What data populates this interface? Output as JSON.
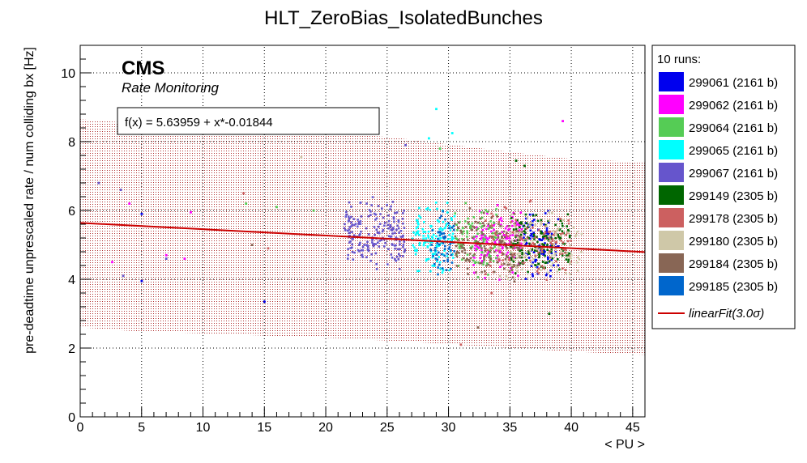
{
  "chart_data": {
    "type": "scatter",
    "title": "HLT_ZeroBias_IsolatedBunches",
    "xlabel": "< PU >",
    "ylabel": "pre-deadtime unprescaled rate / num colliding bx [Hz]",
    "xlim": [
      0,
      46
    ],
    "ylim": [
      0,
      10.8
    ],
    "x_ticks": [
      0,
      5,
      10,
      15,
      20,
      25,
      30,
      35,
      40,
      45
    ],
    "x_tick_labels": [
      "0",
      "5",
      "10",
      "15",
      "20",
      "25",
      "30",
      "35",
      "40",
      "45"
    ],
    "y_ticks": [
      0,
      2,
      4,
      6,
      8,
      10
    ],
    "y_tick_labels": [
      "0",
      "2",
      "4",
      "6",
      "8",
      "10"
    ],
    "grid": true,
    "cms_label": "CMS",
    "cms_sublabel": "Rate Monitoring",
    "fit_label": "f(x) = 5.63959 + x*-0.01844",
    "fit": {
      "intercept": 5.63959,
      "slope": -0.01844,
      "color": "#cc0000"
    },
    "band": {
      "color": "#b03030",
      "upper": [
        [
          0,
          8.65
        ],
        [
          4,
          8.55
        ],
        [
          20,
          8.3
        ],
        [
          26,
          8.1
        ],
        [
          35,
          7.7
        ],
        [
          40,
          7.5
        ],
        [
          46,
          7.4
        ]
      ],
      "lower": [
        [
          0,
          2.6
        ],
        [
          4,
          2.5
        ],
        [
          20,
          2.3
        ],
        [
          26,
          2.2
        ],
        [
          35,
          2.0
        ],
        [
          40,
          1.9
        ],
        [
          46,
          1.8
        ]
      ]
    },
    "legend": {
      "position": "right",
      "header": "10 runs:",
      "fit_entry_label": "linearFit",
      "fit_entry_suffix": "(3.0σ)"
    },
    "series": [
      {
        "name": "299061 (2161 b)",
        "color": "#0000ee",
        "pu_range": [
          36,
          39
        ],
        "rate_center": 5.0,
        "rate_spread": 0.8,
        "n": 100,
        "outliers": [
          [
            5.0,
            5.9
          ],
          [
            5.0,
            3.95
          ],
          [
            15.0,
            3.35
          ]
        ]
      },
      {
        "name": "299062 (2161 b)",
        "color": "#ff00ff",
        "pu_range": [
          32,
          36
        ],
        "rate_center": 5.1,
        "rate_spread": 0.8,
        "n": 130,
        "outliers": [
          [
            39.3,
            8.6
          ],
          [
            4.0,
            6.2
          ],
          [
            9.0,
            5.95
          ],
          [
            8.5,
            4.6
          ],
          [
            7.0,
            4.7
          ],
          [
            2.6,
            4.5
          ]
        ]
      },
      {
        "name": "299064 (2161 b)",
        "color": "#55cc55",
        "pu_range": [
          30.5,
          34
        ],
        "rate_center": 5.2,
        "rate_spread": 0.8,
        "n": 100,
        "outliers": [
          [
            13.5,
            6.2
          ],
          [
            16.0,
            6.1
          ],
          [
            19.0,
            6.0
          ],
          [
            29.3,
            7.8
          ]
        ]
      },
      {
        "name": "299065 (2161 b)",
        "color": "#00ffff",
        "pu_range": [
          27,
          30.5
        ],
        "rate_center": 5.2,
        "rate_spread": 0.8,
        "n": 130,
        "outliers": [
          [
            29.0,
            8.95
          ],
          [
            30.3,
            8.25
          ],
          [
            28.4,
            8.1
          ]
        ]
      },
      {
        "name": "299067 (2161 b)",
        "color": "#6655cc",
        "pu_range": [
          21.5,
          26.5
        ],
        "rate_center": 5.25,
        "rate_spread": 0.8,
        "n": 200,
        "outliers": [
          [
            1.5,
            6.8
          ],
          [
            3.3,
            6.6
          ],
          [
            7.0,
            4.6
          ],
          [
            3.5,
            4.1
          ],
          [
            26.5,
            7.9
          ]
        ]
      },
      {
        "name": "299149 (2305 b)",
        "color": "#006600",
        "pu_range": [
          35,
          40
        ],
        "rate_center": 5.0,
        "rate_spread": 0.8,
        "n": 150,
        "outliers": [
          [
            35.5,
            7.45
          ],
          [
            36.2,
            7.3
          ],
          [
            38.2,
            3.0
          ]
        ]
      },
      {
        "name": "299178 (2305 b)",
        "color": "#cc6060",
        "pu_range": [
          33,
          40
        ],
        "rate_center": 5.0,
        "rate_spread": 0.9,
        "n": 120,
        "outliers": [
          [
            13.3,
            6.5
          ],
          [
            15.3,
            4.9
          ],
          [
            33.5,
            3.6
          ],
          [
            31.0,
            2.1
          ]
        ]
      },
      {
        "name": "299180 (2305 b)",
        "color": "#cfc8a8",
        "pu_range": [
          34,
          41
        ],
        "rate_center": 4.95,
        "rate_spread": 0.8,
        "n": 110,
        "outliers": [
          [
            18.0,
            7.55
          ],
          [
            40.0,
            4.7
          ]
        ]
      },
      {
        "name": "299184 (2305 b)",
        "color": "#886655",
        "pu_range": [
          30.5,
          36
        ],
        "rate_center": 5.0,
        "rate_spread": 0.9,
        "n": 150,
        "outliers": [
          [
            14.0,
            5.0
          ],
          [
            32.4,
            2.6
          ]
        ]
      },
      {
        "name": "299185 (2305 b)",
        "color": "#0066cc",
        "pu_range": [
          28.5,
          30.5
        ],
        "rate_center": 5.0,
        "rate_spread": 0.8,
        "n": 60,
        "outliers": []
      }
    ]
  }
}
